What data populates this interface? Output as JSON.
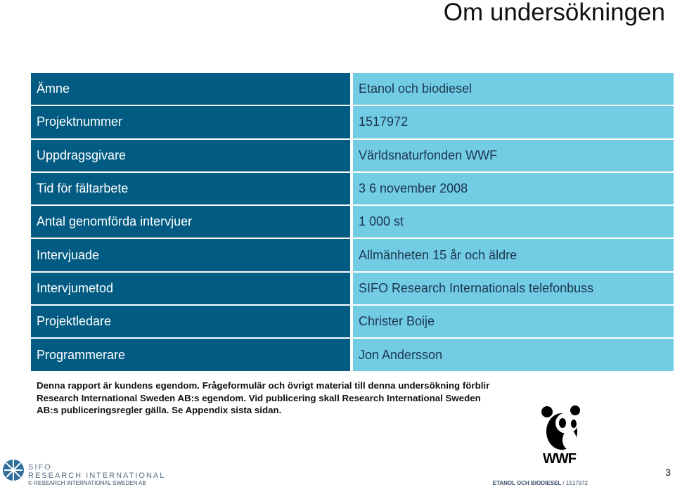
{
  "header": {
    "title": "Om undersökningen"
  },
  "table": {
    "rows": [
      [
        "Ämne",
        "Etanol och biodiesel"
      ],
      [
        "Projektnummer",
        "1517972"
      ],
      [
        "Uppdragsgivare",
        "Världsnaturfonden WWF"
      ],
      [
        "Tid för fältarbete",
        "3 6 november 2008"
      ],
      [
        "Antal genomförda intervjuer",
        "1 000 st"
      ],
      [
        "Intervjuade",
        "Allmänheten 15 år och äldre"
      ],
      [
        "Intervjumetod",
        "SIFO Research Internationals telefonbuss"
      ],
      [
        "Projektledare",
        "Christer Boije"
      ],
      [
        "Programmerare",
        "Jon Andersson"
      ]
    ]
  },
  "disclaimer": "Denna rapport är kundens egendom. Frågeformulär och övrigt material till denna undersökning förblir Research International Sweden AB:s egendom. Vid publicering skall Research International Sweden AB:s publiceringsregler gälla. Se Appendix sista sidan.",
  "logo": {
    "line1": "SIFO",
    "line2": "RESEARCH INTERNATIONAL",
    "wwf": "WWF"
  },
  "footer": {
    "copyright": "© RESEARCH INTERNATIONAL SWEDEN AB",
    "report": "ETANOL OCH BIODIESEL",
    "number": "/ 1517972",
    "page": "3"
  }
}
